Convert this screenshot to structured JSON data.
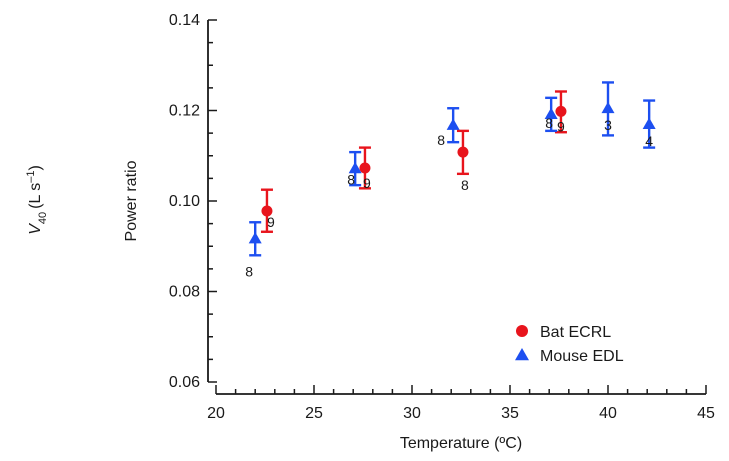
{
  "chart_data": {
    "type": "scatter",
    "xlabel": "Temperature (ºC)",
    "ylabel": "Power ratio",
    "xlim": [
      20,
      45
    ],
    "ylim": [
      0.06,
      0.14
    ],
    "x_ticks": [
      "20",
      "25",
      "30",
      "35",
      "40",
      "45"
    ],
    "y_ticks": [
      "0.06",
      "0.08",
      "0.10",
      "0.12",
      "0.14"
    ],
    "grid": false,
    "legend_position": "bottom-right",
    "ghost_label": {
      "main": "V",
      "sub": "40",
      "rest": "(L s",
      "sup": "–1",
      "close": ")"
    },
    "series": [
      {
        "name": "Bat ECRL",
        "marker": "circle",
        "color": "#e8141c",
        "points": [
          {
            "x": 22.6,
            "y": 0.0978,
            "ylow": 0.0932,
            "yhigh": 0.1025,
            "n": "9"
          },
          {
            "x": 27.6,
            "y": 0.1073,
            "ylow": 0.1028,
            "yhigh": 0.1118,
            "n": "9"
          },
          {
            "x": 32.6,
            "y": 0.1108,
            "ylow": 0.106,
            "yhigh": 0.1155,
            "n": "8"
          },
          {
            "x": 37.6,
            "y": 0.1198,
            "ylow": 0.1152,
            "yhigh": 0.1242,
            "n": "9"
          }
        ]
      },
      {
        "name": "Mouse EDL",
        "marker": "triangle",
        "color": "#1d4ff0",
        "points": [
          {
            "x": 22.0,
            "y": 0.0917,
            "ylow": 0.088,
            "yhigh": 0.0953,
            "n": "8"
          },
          {
            "x": 27.1,
            "y": 0.1072,
            "ylow": 0.1035,
            "yhigh": 0.1108,
            "n": "8"
          },
          {
            "x": 32.1,
            "y": 0.1168,
            "ylow": 0.113,
            "yhigh": 0.1205,
            "n": "8"
          },
          {
            "x": 37.1,
            "y": 0.1192,
            "ylow": 0.1155,
            "yhigh": 0.1228,
            "n": "8"
          },
          {
            "x": 40.0,
            "y": 0.1205,
            "ylow": 0.1145,
            "yhigh": 0.1262,
            "n": "3"
          },
          {
            "x": 42.1,
            "y": 0.117,
            "ylow": 0.1118,
            "yhigh": 0.1222,
            "n": "4"
          }
        ]
      }
    ]
  }
}
